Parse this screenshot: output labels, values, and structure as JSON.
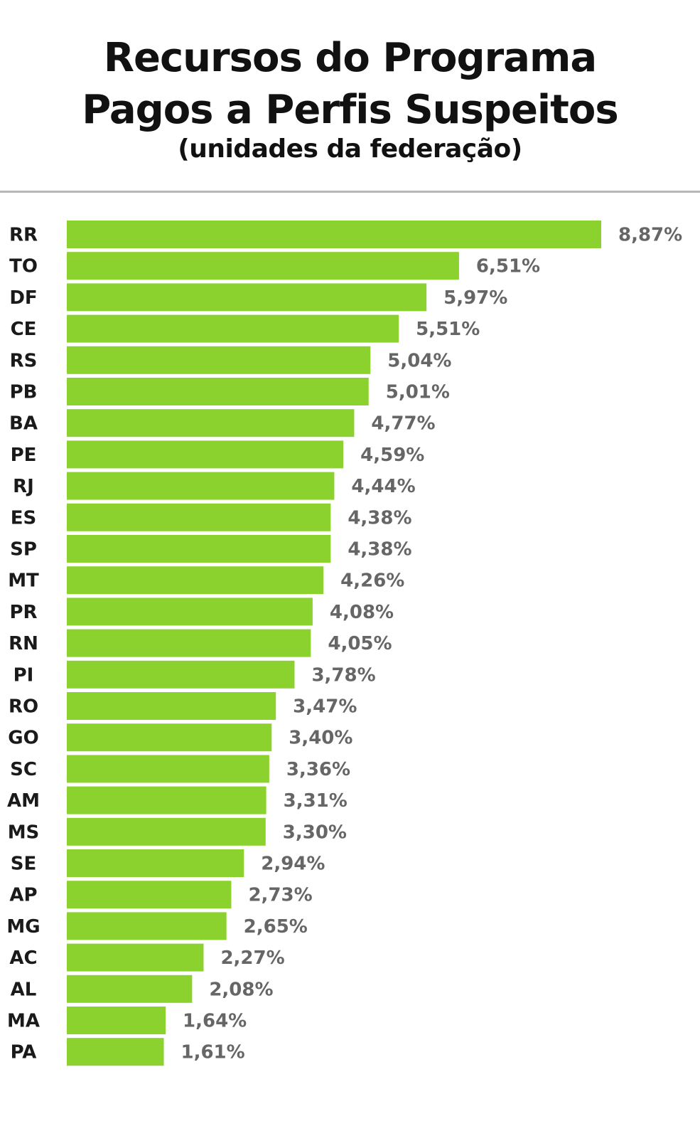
{
  "title": {
    "line1": "Recursos do Programa",
    "line2": "Pagos a Perfis Suspeitos",
    "subtitle": "(unidades da federação)"
  },
  "colors": {
    "bar": "#8bd22e",
    "value_text": "#666666",
    "category_text": "#1a1a1a",
    "divider": "#b7b7b7"
  },
  "chart_data": {
    "type": "bar",
    "orientation": "horizontal",
    "title": "Recursos do Programa Pagos a Perfis Suspeitos",
    "subtitle": "(unidades da federação)",
    "xlabel": "",
    "ylabel": "",
    "grid": false,
    "categories": [
      "RR",
      "TO",
      "DF",
      "CE",
      "RS",
      "PB",
      "BA",
      "PE",
      "RJ",
      "ES",
      "SP",
      "MT",
      "PR",
      "RN",
      "PI",
      "RO",
      "GO",
      "SC",
      "AM",
      "MS",
      "SE",
      "AP",
      "MG",
      "AC",
      "AL",
      "MA",
      "PA"
    ],
    "values": [
      8.87,
      6.51,
      5.97,
      5.51,
      5.04,
      5.01,
      4.77,
      4.59,
      4.44,
      4.38,
      4.38,
      4.26,
      4.08,
      4.05,
      3.78,
      3.47,
      3.4,
      3.36,
      3.31,
      3.3,
      2.94,
      2.73,
      2.65,
      2.27,
      2.08,
      1.64,
      1.61
    ],
    "value_labels": [
      "8,87%",
      "6,51%",
      "5,97%",
      "5,51%",
      "5,04%",
      "5,01%",
      "4,77%",
      "4,59%",
      "4,44%",
      "4,38%",
      "4,38%",
      "4,26%",
      "4,08%",
      "4,05%",
      "3,78%",
      "3,47%",
      "3,40%",
      "3,36%",
      "3,31%",
      "3,30%",
      "2,94%",
      "2,73%",
      "2,65%",
      "2,27%",
      "2,08%",
      "1,64%",
      "1,61%"
    ],
    "xlim": [
      0,
      8.87
    ]
  }
}
